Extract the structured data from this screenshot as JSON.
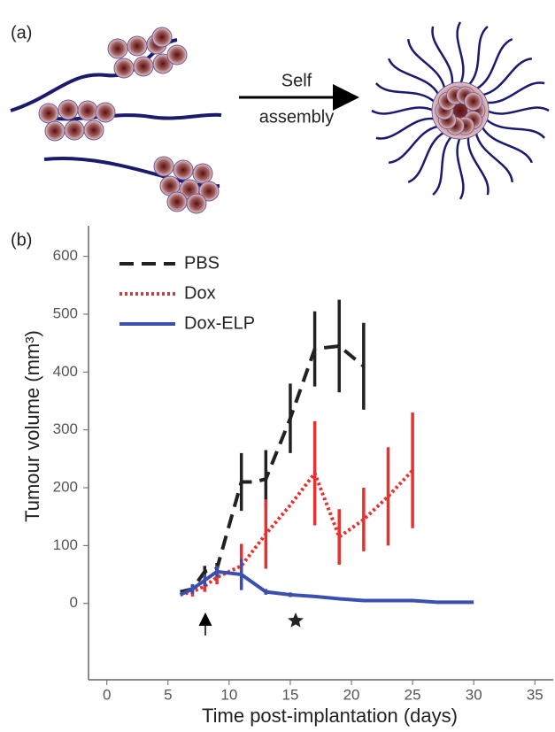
{
  "panel_a": {
    "label": "(a)",
    "arrow_label_top": "Self",
    "arrow_label_bottom": "assembly"
  },
  "panel_b": {
    "label": "(b)"
  },
  "chart_data": {
    "type": "line",
    "x_label": "Time post-implantation (days)",
    "y_label": "Tumour volume (mm³)",
    "xlim": [
      -1.5,
      36.5
    ],
    "xticks": [
      0,
      5,
      10,
      15,
      20,
      25,
      30,
      35
    ],
    "ylim": [
      -132,
      653
    ],
    "yticks": [
      0,
      100,
      200,
      300,
      400,
      500,
      600
    ],
    "grid": false,
    "legend": "upper left",
    "series": [
      {
        "name": "PBS",
        "color": "#222222",
        "style": "dashed",
        "x": [
          6,
          7,
          8,
          9,
          11,
          12,
          13,
          15,
          17,
          19,
          21
        ],
        "values": [
          20,
          25,
          55,
          60,
          210,
          210,
          215,
          320,
          440,
          445,
          410
        ],
        "errors": [
          null,
          8,
          10,
          10,
          50,
          null,
          50,
          60,
          65,
          80,
          75
        ]
      },
      {
        "name": "Dox",
        "color": "#e8312f",
        "style": "dotted",
        "x": [
          6,
          7,
          8,
          9,
          11,
          13,
          15,
          17,
          19,
          21,
          23,
          25
        ],
        "values": [
          15,
          20,
          30,
          45,
          65,
          120,
          170,
          225,
          115,
          145,
          185,
          230
        ],
        "errors": [
          null,
          8,
          10,
          12,
          38,
          60,
          null,
          90,
          48,
          55,
          85,
          100
        ]
      },
      {
        "name": "Dox-ELP",
        "color": "#3b4fb0",
        "style": "solid",
        "x": [
          6,
          7,
          8,
          9,
          11,
          12,
          13,
          15,
          17,
          19,
          21,
          23,
          25,
          27,
          29,
          30
        ],
        "values": [
          15,
          25,
          40,
          55,
          50,
          35,
          20,
          15,
          12,
          8,
          5,
          5,
          5,
          2,
          2,
          2
        ],
        "errors": [
          null,
          8,
          10,
          10,
          27,
          null,
          5,
          4,
          null,
          null,
          null,
          null,
          null,
          null,
          null,
          null
        ]
      }
    ]
  }
}
